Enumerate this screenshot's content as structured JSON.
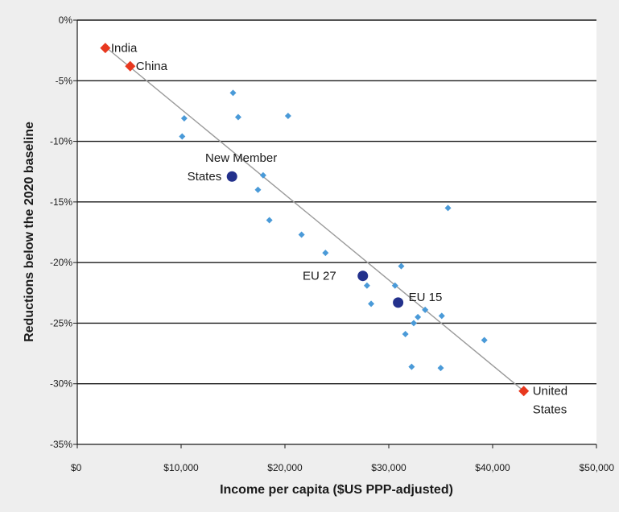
{
  "chart_data": {
    "type": "scatter",
    "title": "",
    "xlabel": "Income per capita ($US PPP-adjusted)",
    "ylabel": "Reductions below the 2020 baseline",
    "xlim": [
      0,
      50000
    ],
    "ylim": [
      -35,
      0
    ],
    "x_ticks": [
      0,
      10000,
      20000,
      30000,
      40000,
      50000
    ],
    "x_tick_labels": [
      "$0",
      "$10,000",
      "$20,000",
      "$30,000",
      "$40,000",
      "$50,000"
    ],
    "y_ticks": [
      0,
      -5,
      -10,
      -15,
      -20,
      -25,
      -30,
      -35
    ],
    "y_tick_labels": [
      "0%",
      "-5%",
      "-10%",
      "-15%",
      "-20%",
      "-25%",
      "-30%",
      "-35%"
    ],
    "grid": "horizontal",
    "colors": {
      "background": "#eeeeee",
      "plot_area": "#ffffff",
      "gridline": "#1a1a1a",
      "small_points": "#4a9ad8",
      "highlighted_points": "#e8381f",
      "aggregate_points": "#23318c",
      "trend_line": "#9a9a9a"
    },
    "trend_line": [
      {
        "x": 2700,
        "y": -2.2
      },
      {
        "x": 43000,
        "y": -30.6
      }
    ],
    "series": [
      {
        "marker": "small-diamond",
        "points": [
          {
            "x": 15000,
            "y": -6.0
          },
          {
            "x": 10300,
            "y": -8.1
          },
          {
            "x": 15500,
            "y": -8.0
          },
          {
            "x": 20300,
            "y": -7.9
          },
          {
            "x": 10100,
            "y": -9.6
          },
          {
            "x": 17900,
            "y": -12.8
          },
          {
            "x": 17400,
            "y": -14.0
          },
          {
            "x": 18500,
            "y": -16.5
          },
          {
            "x": 21600,
            "y": -17.7
          },
          {
            "x": 23900,
            "y": -19.2
          },
          {
            "x": 35700,
            "y": -15.5
          },
          {
            "x": 31200,
            "y": -20.3
          },
          {
            "x": 27900,
            "y": -21.9
          },
          {
            "x": 30600,
            "y": -21.9
          },
          {
            "x": 28300,
            "y": -23.4
          },
          {
            "x": 33500,
            "y": -23.9
          },
          {
            "x": 32800,
            "y": -24.5
          },
          {
            "x": 32400,
            "y": -25.0
          },
          {
            "x": 35100,
            "y": -24.4
          },
          {
            "x": 31600,
            "y": -25.9
          },
          {
            "x": 39200,
            "y": -26.4
          },
          {
            "x": 32200,
            "y": -28.6
          },
          {
            "x": 35000,
            "y": -28.7
          }
        ]
      },
      {
        "marker": "large-circle",
        "points": [
          {
            "x": 14900,
            "y": -12.9,
            "label": "New Member\nStates"
          },
          {
            "x": 27500,
            "y": -21.1,
            "label": "EU 27"
          },
          {
            "x": 30900,
            "y": -23.3,
            "label": "EU 15"
          }
        ]
      },
      {
        "marker": "large-diamond",
        "points": [
          {
            "x": 2700,
            "y": -2.3,
            "label": "India"
          },
          {
            "x": 5100,
            "y": -3.8,
            "label": "China"
          },
          {
            "x": 43000,
            "y": -30.6,
            "label": "United\nStates"
          }
        ]
      }
    ]
  }
}
